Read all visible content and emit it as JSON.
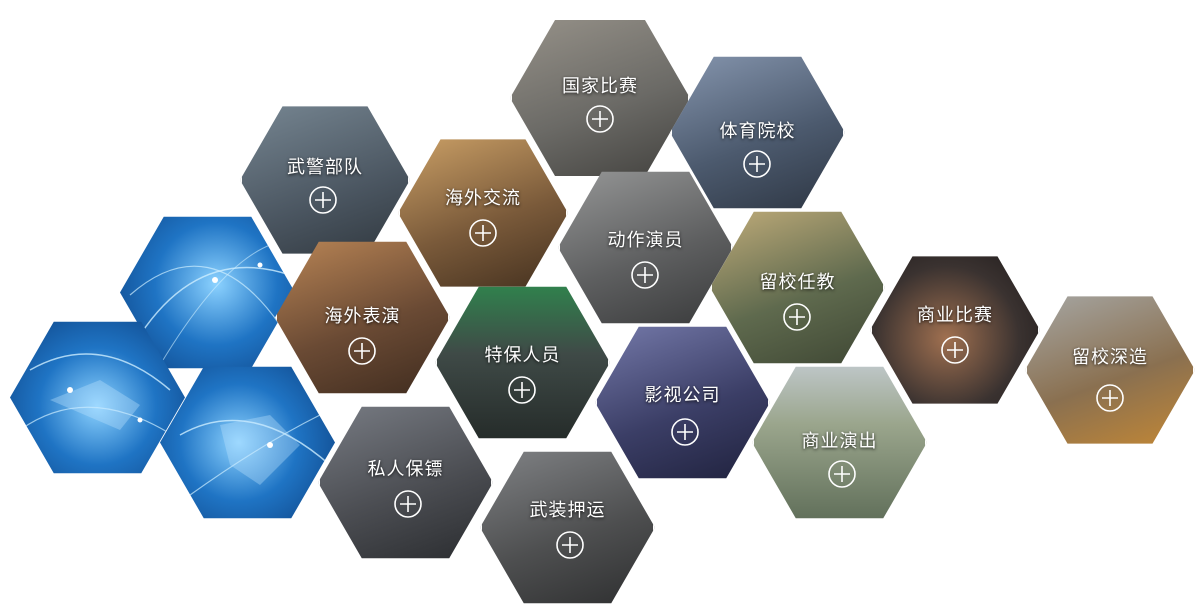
{
  "hexagons": [
    {
      "id": "wujing",
      "label": "武警部队",
      "bg": "#4a5560",
      "accent": "#7a8a96"
    },
    {
      "id": "guojia",
      "label": "国家比赛",
      "bg": "#6b6a66",
      "accent": "#9a958c"
    },
    {
      "id": "tiyu",
      "label": "体育院校",
      "bg": "#4c5a6e",
      "accent": "#8b9bb4"
    },
    {
      "id": "haiwai_jl",
      "label": "海外交流",
      "bg": "#7a5a3a",
      "accent": "#b78a52"
    },
    {
      "id": "dongzuo",
      "label": "动作演员",
      "bg": "#5e5f60",
      "accent": "#9b9c9c"
    },
    {
      "id": "liuxiao_rj",
      "label": "留校任教",
      "bg": "#5f6a4e",
      "accent": "#b4a073"
    },
    {
      "id": "haiwai_by",
      "label": "海外表演",
      "bg": "#6a4a34",
      "accent": "#a8805c"
    },
    {
      "id": "tebao",
      "label": "特保人员",
      "bg": "#3f4a47",
      "accent": "#6b8f6a"
    },
    {
      "id": "shangye_bs",
      "label": "商业比赛",
      "bg": "#3a3230",
      "accent": "#7a5a4a"
    },
    {
      "id": "liuxiao_sz",
      "label": "留校深造",
      "bg": "#8a7050",
      "accent": "#c79a52"
    },
    {
      "id": "yingshi",
      "label": "影视公司",
      "bg": "#3b3e66",
      "accent": "#7a7fb0"
    },
    {
      "id": "siren",
      "label": "私人保镖",
      "bg": "#4b4d52",
      "accent": "#7c8088"
    },
    {
      "id": "wuzhuang",
      "label": "武装押运",
      "bg": "#4e4f50",
      "accent": "#85878a"
    },
    {
      "id": "shangye_yc",
      "label": "商业演出",
      "bg": "#5b6a55",
      "accent": "#9aa58c"
    }
  ],
  "globe_colors": {
    "deep": "#0b3a78",
    "mid": "#1f74c4",
    "light": "#8cd2ff"
  }
}
